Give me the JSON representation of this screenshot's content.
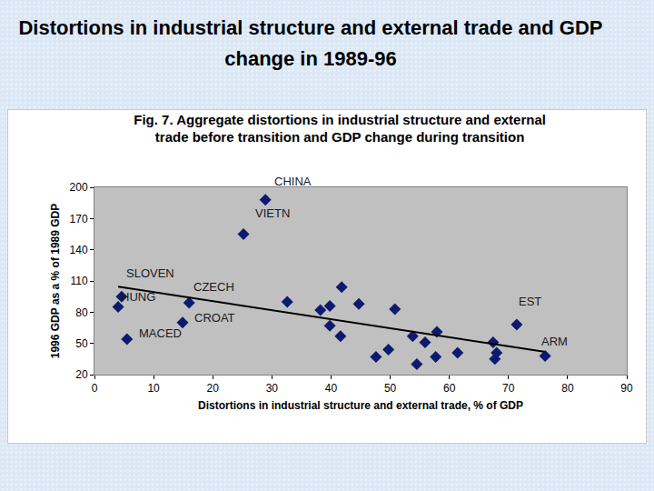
{
  "slide": {
    "title": "Distortions in industrial structure and external trade and GDP change in 1989-96"
  },
  "chart_data": {
    "type": "scatter",
    "title": "Fig. 7. Aggregate distortions in industrial structure and external trade before transition and GDP change during transition",
    "x_label": "Distortions in industrial structure and external trade, % of GDP",
    "y_label": "1996 GDP as a % of 1989 GDP",
    "xlim": [
      0,
      90
    ],
    "xticks": [
      0,
      10,
      20,
      30,
      40,
      50,
      60,
      70,
      80,
      90
    ],
    "ylim": [
      20,
      200
    ],
    "yticks": [
      20,
      50,
      80,
      110,
      140,
      170,
      200
    ],
    "grid": false,
    "series": [
      {
        "type": "scatter",
        "marker": "diamond",
        "color": "#0d1a6e",
        "x": [
          28.9,
          25.2,
          4.6,
          4.0,
          5.5,
          16.0,
          14.9,
          32.6,
          38.2,
          39.8,
          41.8,
          39.8,
          41.6,
          44.7,
          50.8,
          47.6,
          49.7,
          53.8,
          54.5,
          55.9,
          57.9,
          57.7,
          61.4,
          67.4,
          68.0,
          67.7,
          71.4,
          76.2
        ],
        "values": [
          188,
          155,
          95,
          85,
          54,
          89,
          70,
          90,
          82,
          86,
          104,
          67,
          57,
          88,
          83,
          37,
          44,
          57,
          30,
          51,
          61,
          37,
          41,
          51,
          41,
          35,
          68,
          38
        ],
        "point_labels": [
          "CHINA",
          "VIETN",
          "SLOVEN",
          "HUNG",
          "MACED",
          "CZECH",
          "CROAT",
          null,
          null,
          null,
          null,
          null,
          null,
          null,
          null,
          null,
          null,
          null,
          null,
          null,
          null,
          null,
          null,
          null,
          null,
          null,
          "EST",
          "ARM"
        ]
      },
      {
        "type": "line",
        "line_style": "solid",
        "color": "#000000",
        "x": [
          4,
          76
        ],
        "values": [
          104.5,
          42
        ]
      }
    ]
  }
}
